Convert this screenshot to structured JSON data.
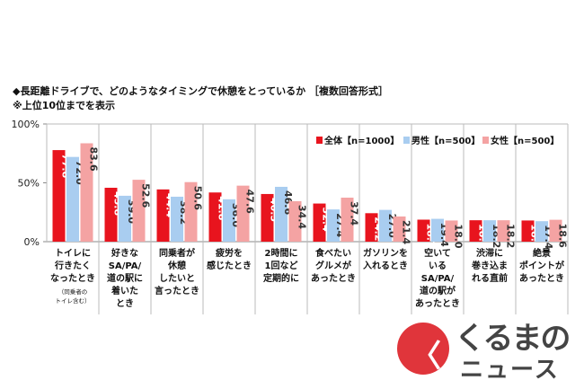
{
  "chart_data": {
    "type": "bar",
    "title": "◆長距離ドライブで、どのようなタイミングで休憩をとっているか ［複数回答形式］",
    "subtitle": "※上位10位までを表示",
    "ylim": [
      0,
      100
    ],
    "yticks": [
      "0%",
      "50%",
      "100%"
    ],
    "legend_position": "top-right",
    "categories": [
      [
        "トイレに",
        "行きたく",
        "なったとき"
      ],
      [
        "好きな",
        "SA/PA/",
        "道の駅に",
        "着いた",
        "とき"
      ],
      [
        "同乗者が",
        "休憩",
        "したいと",
        "言ったとき"
      ],
      [
        "疲労を",
        "感じたとき"
      ],
      [
        "2時間に",
        "1回など",
        "定期的に"
      ],
      [
        "食べたい",
        "グルメが",
        "あったとき"
      ],
      [
        "ガソリンを",
        "入れるとき"
      ],
      [
        "空いて",
        "いる",
        "SA/PA/",
        "道の駅が",
        "あったとき"
      ],
      [
        "渋滞に",
        "巻き込ま",
        "れる直前"
      ],
      [
        "絶景",
        "ポイントが",
        "あったとき"
      ]
    ],
    "category_note": [
      "（同乗者の",
      "トイレ含む）"
    ],
    "series": [
      {
        "name": "全体【n=1000】",
        "color": "#e8141e",
        "values": [
          77.8,
          45.8,
          44.4,
          41.8,
          40.5,
          32.4,
          24.2,
          18.7,
          18.2,
          18.0
        ]
      },
      {
        "name": "男性【n=500】",
        "color": "#a9cdf0",
        "values": [
          72.0,
          39.0,
          38.2,
          36.0,
          46.6,
          27.4,
          27.0,
          19.4,
          18.2,
          17.4
        ]
      },
      {
        "name": "女性【n=500】",
        "color": "#f4a3a3",
        "values": [
          83.6,
          52.6,
          50.6,
          47.6,
          34.4,
          37.4,
          21.4,
          18.0,
          18.2,
          18.6
        ]
      }
    ]
  },
  "logo": {
    "line1": "くるまの",
    "line2": "ニュース"
  }
}
